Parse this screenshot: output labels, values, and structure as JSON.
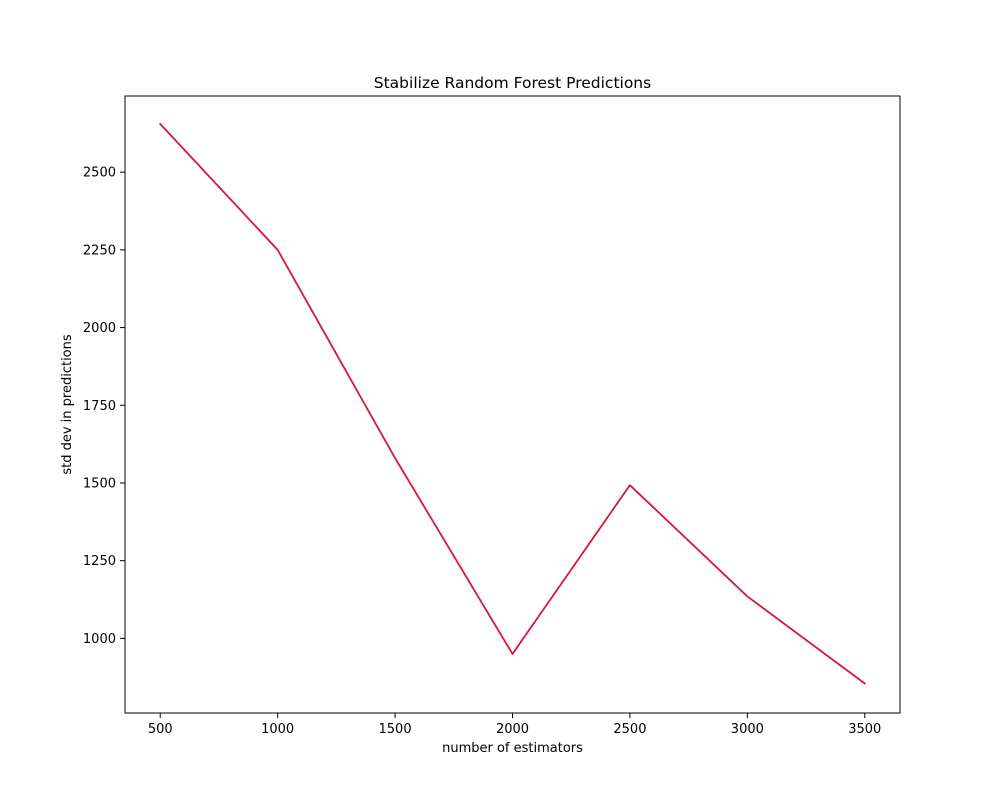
{
  "chart_data": {
    "type": "line",
    "title": "Stabilize Random Forest Predictions",
    "xlabel": "number of estimators",
    "ylabel": "std dev in predictions",
    "x": [
      500,
      1000,
      1500,
      2000,
      2500,
      3000,
      3500
    ],
    "series": [
      {
        "values": [
          2655,
          2250,
          1580,
          950,
          1493,
          1135,
          855
        ],
        "color": "#d6163f"
      }
    ],
    "xticks": [
      500,
      1000,
      1500,
      2000,
      2500,
      3000,
      3500
    ],
    "yticks": [
      1000,
      1250,
      1500,
      1750,
      2000,
      2250,
      2500
    ],
    "xlim": [
      350,
      3650
    ],
    "ylim": [
      760,
      2745
    ],
    "grid": false
  }
}
